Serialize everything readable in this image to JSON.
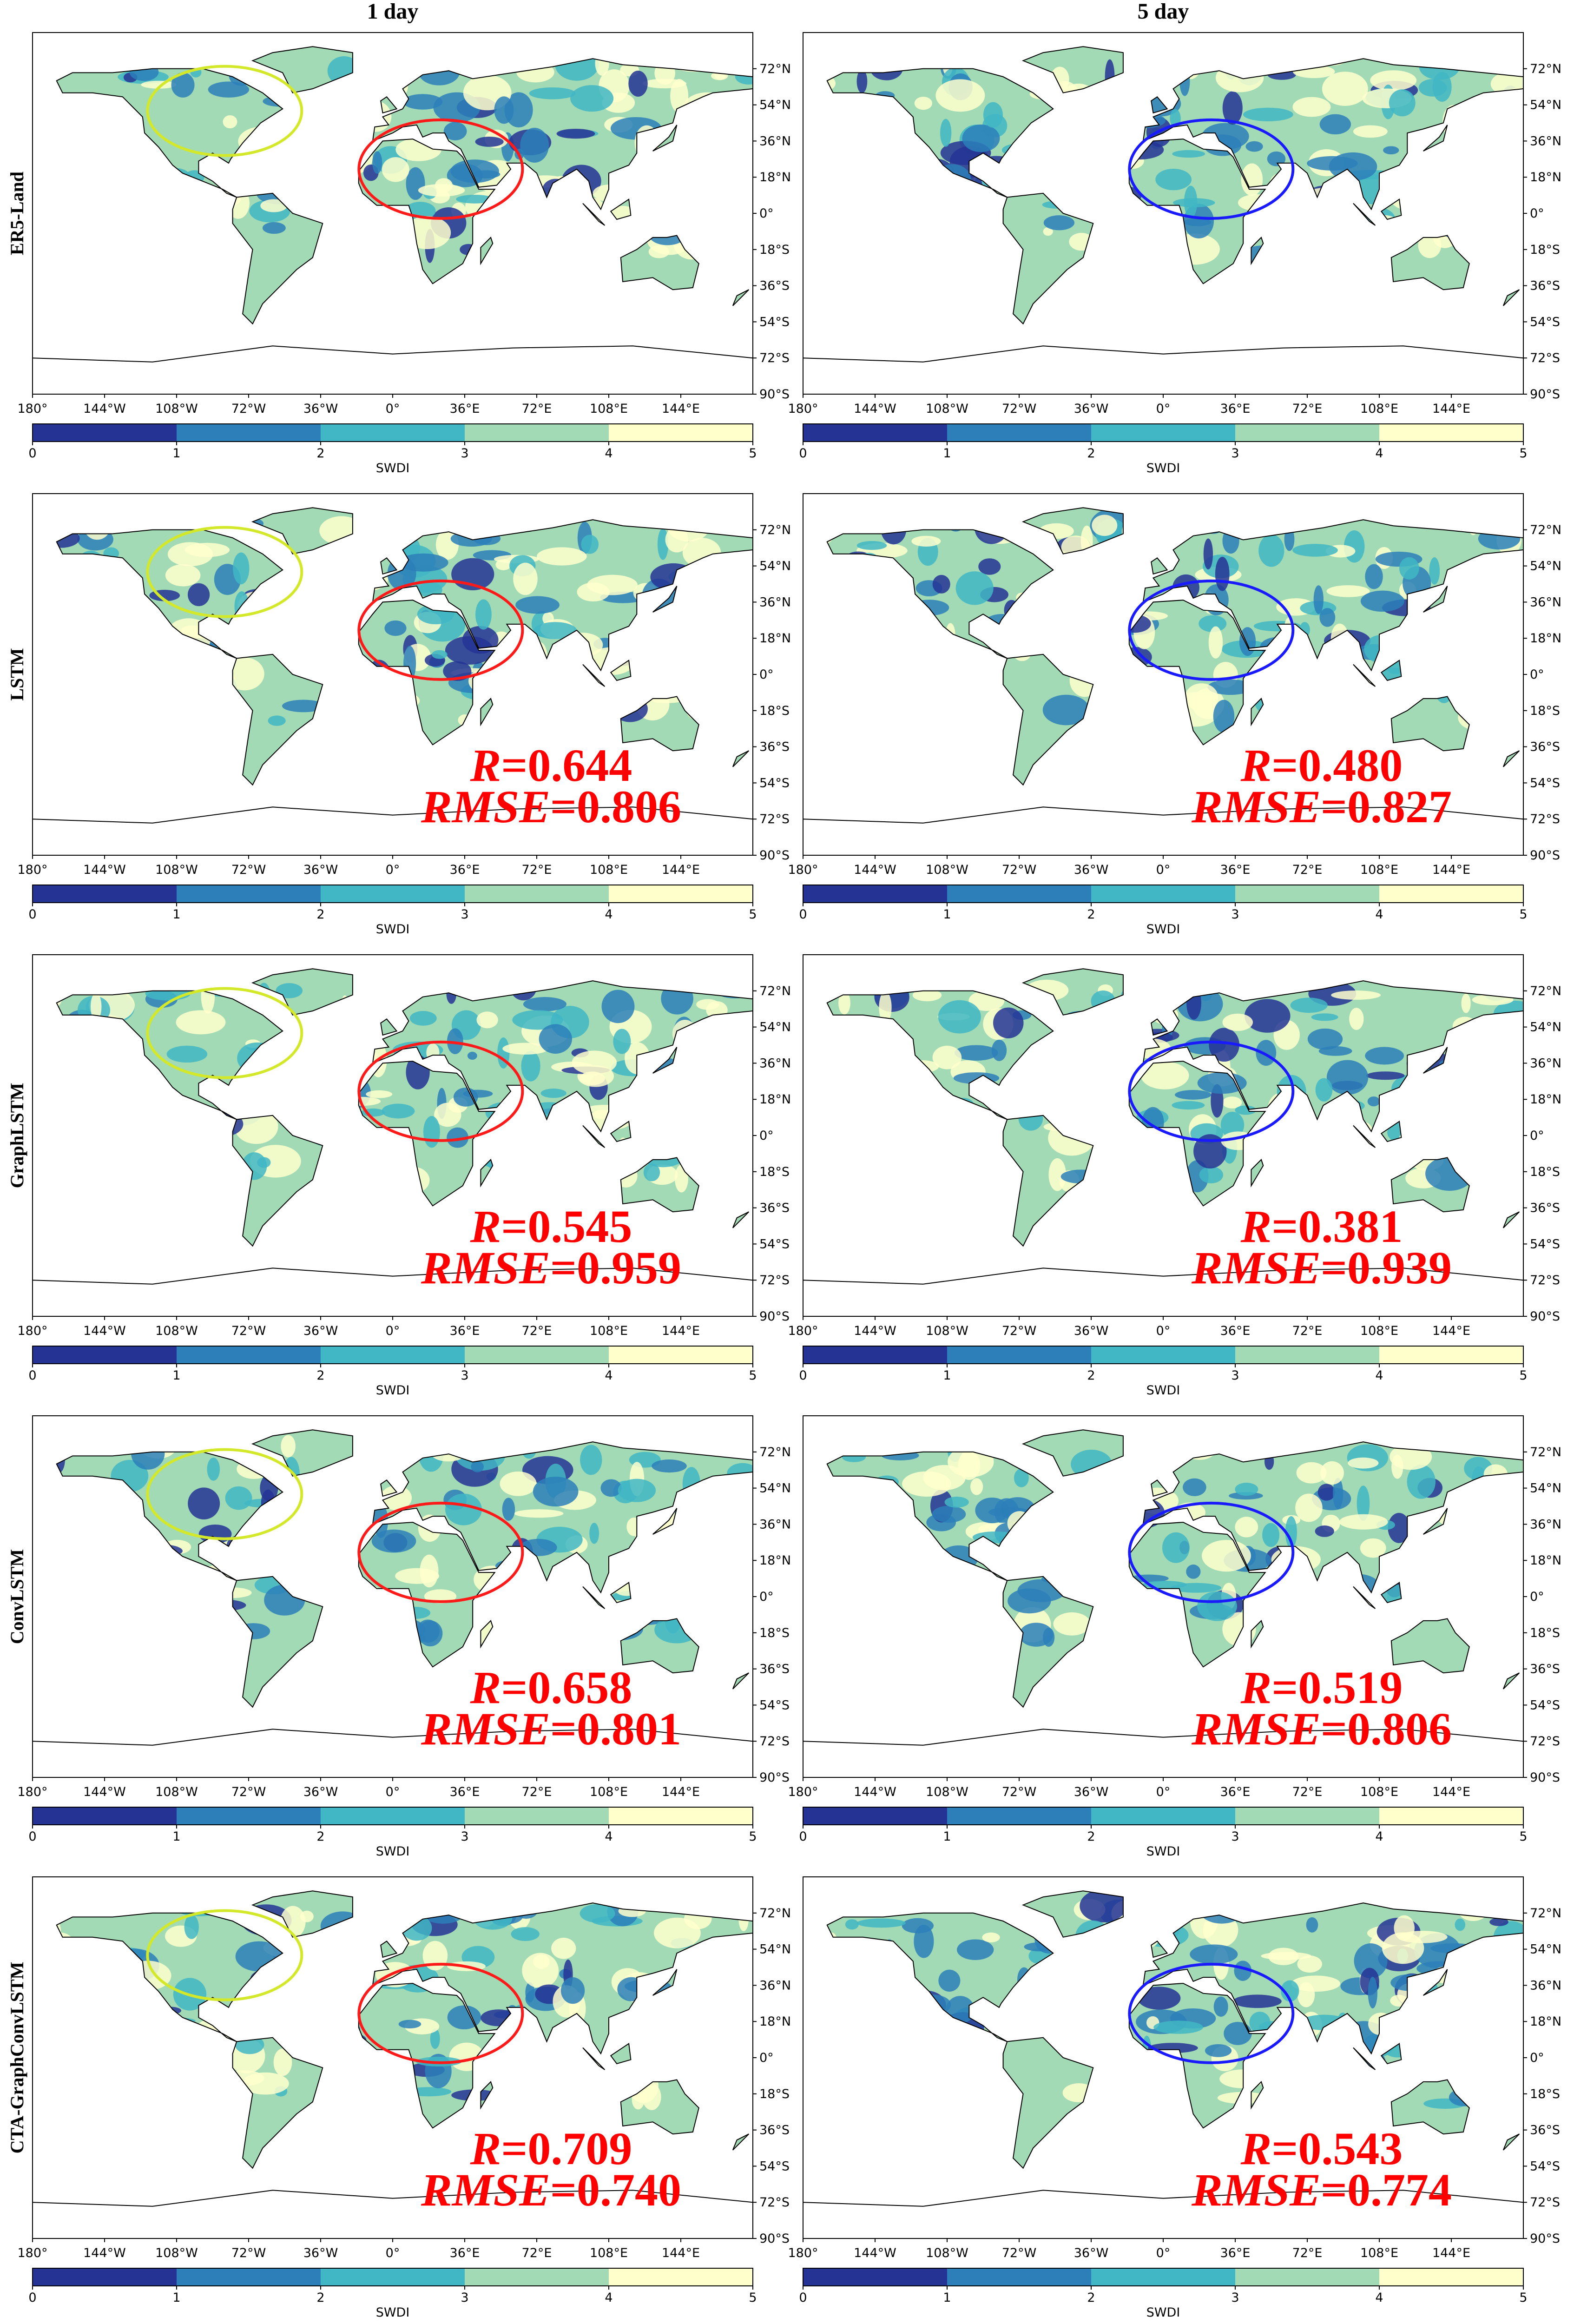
{
  "columns": [
    "1 day",
    "5 day"
  ],
  "metric_labels": {
    "r": "R",
    "rmse": "RMSE",
    "sign": "="
  },
  "rows": [
    {
      "label": "ER5-Land"
    },
    {
      "label": "LSTM",
      "metrics": [
        {
          "r": "0.644",
          "rmse": "0.806"
        },
        {
          "r": "0.480",
          "rmse": "0.827"
        }
      ]
    },
    {
      "label": "GraphLSTM",
      "metrics": [
        {
          "r": "0.545",
          "rmse": "0.959"
        },
        {
          "r": "0.381",
          "rmse": "0.939"
        }
      ]
    },
    {
      "label": "ConvLSTM",
      "metrics": [
        {
          "r": "0.658",
          "rmse": "0.801"
        },
        {
          "r": "0.519",
          "rmse": "0.806"
        }
      ]
    },
    {
      "label": "CTA-GraphConvLSTM",
      "metrics": [
        {
          "r": "0.709",
          "rmse": "0.740"
        },
        {
          "r": "0.543",
          "rmse": "0.774"
        }
      ]
    }
  ],
  "lon_ticks": [
    {
      "value": -180,
      "label": "180°"
    },
    {
      "value": -144,
      "label": "144°W"
    },
    {
      "value": -108,
      "label": "108°W"
    },
    {
      "value": -72,
      "label": "72°W"
    },
    {
      "value": -36,
      "label": "36°W"
    },
    {
      "value": 0,
      "label": "0°"
    },
    {
      "value": 36,
      "label": "36°E"
    },
    {
      "value": 72,
      "label": "72°E"
    },
    {
      "value": 108,
      "label": "108°E"
    },
    {
      "value": 144,
      "label": "144°E"
    }
  ],
  "lat_ticks": [
    {
      "value": 72,
      "label": "72°N"
    },
    {
      "value": 54,
      "label": "54°N"
    },
    {
      "value": 36,
      "label": "36°N"
    },
    {
      "value": 18,
      "label": "18°N"
    },
    {
      "value": 0,
      "label": "0°"
    },
    {
      "value": -18,
      "label": "18°S"
    },
    {
      "value": -36,
      "label": "36°S"
    },
    {
      "value": -54,
      "label": "54°S"
    },
    {
      "value": -72,
      "label": "72°S"
    },
    {
      "value": -90,
      "label": "90°S"
    }
  ],
  "colorbar": {
    "label": "SWDI",
    "ticks": [
      0,
      1,
      2,
      3,
      4,
      5
    ],
    "colors": [
      "#253494",
      "#2c7fb8",
      "#41b6c4",
      "#a1dab4",
      "#ffffcc"
    ]
  }
}
